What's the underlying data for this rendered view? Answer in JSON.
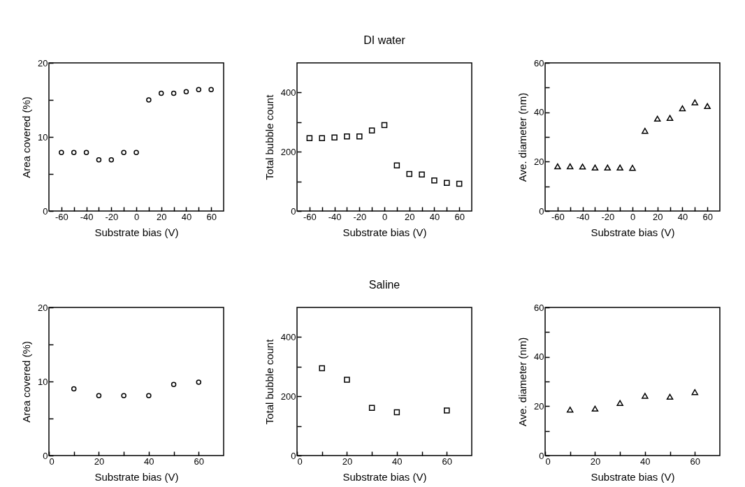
{
  "chart_data": [
    {
      "type": "scatter",
      "x": [
        -60,
        -50,
        -40,
        -30,
        -20,
        -10,
        0,
        10,
        20,
        30,
        40,
        50,
        60
      ],
      "values": [
        7.9,
        7.9,
        7.9,
        6.9,
        6.9,
        7.9,
        7.9,
        15.0,
        15.9,
        15.9,
        16.1,
        16.4,
        16.4
      ],
      "color": "#000000",
      "marker": "circle",
      "xlabel": "Substrate bias (V)",
      "ylabel": "Area covered (%)",
      "xlim": [
        -70,
        70
      ],
      "xticks": [
        -60,
        {
          "value": -50,
          "label": null
        },
        -40,
        {
          "value": -30,
          "label": null
        },
        -20,
        {
          "value": -10,
          "label": null
        },
        0,
        {
          "value": 10,
          "label": null
        },
        20,
        {
          "value": 30,
          "label": null
        },
        40,
        {
          "value": 50,
          "label": null
        },
        60
      ],
      "ylim": [
        0,
        20
      ],
      "yticks": [
        0,
        {
          "value": 5,
          "label": null
        },
        10,
        {
          "value": 15,
          "label": null
        },
        20
      ],
      "grid": false
    },
    {
      "type": "scatter",
      "title": "DI water",
      "x": [
        -60,
        -50,
        -40,
        -30,
        -20,
        -10,
        0,
        10,
        20,
        30,
        40,
        50,
        60
      ],
      "values": [
        246,
        246,
        248,
        252,
        252,
        272,
        290,
        154,
        125,
        123,
        103,
        95,
        92
      ],
      "color": "#000000",
      "marker": "square",
      "xlabel": "Substrate bias (V)",
      "ylabel": "Total bubble count",
      "xlim": [
        -70,
        70
      ],
      "xticks": [
        -60,
        {
          "value": -50,
          "label": null
        },
        -40,
        {
          "value": -30,
          "label": null
        },
        -20,
        {
          "value": -10,
          "label": null
        },
        0,
        {
          "value": 10,
          "label": null
        },
        20,
        {
          "value": 30,
          "label": null
        },
        40,
        {
          "value": 50,
          "label": null
        },
        60
      ],
      "ylim": [
        0,
        500
      ],
      "yticks": [
        0,
        {
          "value": 100,
          "label": null
        },
        200,
        {
          "value": 300,
          "label": null
        },
        400
      ],
      "grid": false
    },
    {
      "type": "scatter",
      "x": [
        -60,
        -50,
        -40,
        -30,
        -20,
        -10,
        0,
        10,
        20,
        30,
        40,
        50,
        60
      ],
      "values": [
        18.1,
        18.1,
        18,
        17.6,
        17.6,
        17.6,
        17.5,
        32.5,
        37.4,
        37.7,
        41.6,
        44,
        42.5
      ],
      "color": "#000000",
      "marker": "triangle",
      "xlabel": "Substrate bias (V)",
      "ylabel": "Ave. diameter (nm)",
      "xlim": [
        -70,
        70
      ],
      "xticks": [
        -60,
        {
          "value": -50,
          "label": null
        },
        -40,
        {
          "value": -30,
          "label": null
        },
        -20,
        {
          "value": -10,
          "label": null
        },
        0,
        {
          "value": 10,
          "label": null
        },
        20,
        {
          "value": 30,
          "label": null
        },
        40,
        {
          "value": 50,
          "label": null
        },
        60
      ],
      "ylim": [
        0,
        60
      ],
      "yticks": [
        0,
        {
          "value": 10,
          "label": null
        },
        20,
        {
          "value": 30,
          "label": null
        },
        40,
        {
          "value": 50,
          "label": null
        },
        60
      ],
      "grid": false
    },
    {
      "type": "scatter",
      "x": [
        10,
        20,
        30,
        40,
        50,
        60
      ],
      "values": [
        9.0,
        8.1,
        8.1,
        8.1,
        9.6,
        9.9
      ],
      "color": "#000000",
      "marker": "circle",
      "xlabel": "Substrate bias (V)",
      "ylabel": "Area covered (%)",
      "xlim": [
        0,
        70
      ],
      "xticks": [
        0,
        {
          "value": 10,
          "label": null
        },
        20,
        {
          "value": 30,
          "label": null
        },
        40,
        {
          "value": 50,
          "label": null
        },
        60
      ],
      "ylim": [
        0,
        20
      ],
      "yticks": [
        0,
        {
          "value": 5,
          "label": null
        },
        10,
        {
          "value": 15,
          "label": null
        },
        20
      ],
      "grid": false
    },
    {
      "type": "scatter",
      "title": "Saline",
      "x": [
        10,
        20,
        30,
        40,
        60
      ],
      "values": [
        295,
        256,
        161,
        146,
        152
      ],
      "color": "#000000",
      "marker": "square",
      "xlabel": "Substrate bias (V)",
      "ylabel": "Total bubble count",
      "xlim": [
        0,
        70
      ],
      "xticks": [
        0,
        {
          "value": 10,
          "label": null
        },
        20,
        {
          "value": 30,
          "label": null
        },
        40,
        {
          "value": 50,
          "label": null
        },
        60
      ],
      "ylim": [
        0,
        500
      ],
      "yticks": [
        0,
        {
          "value": 100,
          "label": null
        },
        200,
        {
          "value": 300,
          "label": null
        },
        400
      ],
      "grid": false
    },
    {
      "type": "scatter",
      "x": [
        10,
        20,
        30,
        40,
        50,
        60
      ],
      "values": [
        18.6,
        19,
        21.3,
        24.2,
        23.8,
        25.7
      ],
      "color": "#000000",
      "marker": "triangle",
      "xlabel": "Substrate bias (V)",
      "ylabel": "Ave. diameter (nm)",
      "xlim": [
        0,
        70
      ],
      "xticks": [
        0,
        {
          "value": 10,
          "label": null
        },
        20,
        {
          "value": 30,
          "label": null
        },
        40,
        {
          "value": 50,
          "label": null
        },
        60
      ],
      "ylim": [
        0,
        60
      ],
      "yticks": [
        0,
        {
          "value": 10,
          "label": null
        },
        20,
        {
          "value": 30,
          "label": null
        },
        40,
        {
          "value": 50,
          "label": null
        },
        60
      ],
      "grid": false
    }
  ]
}
